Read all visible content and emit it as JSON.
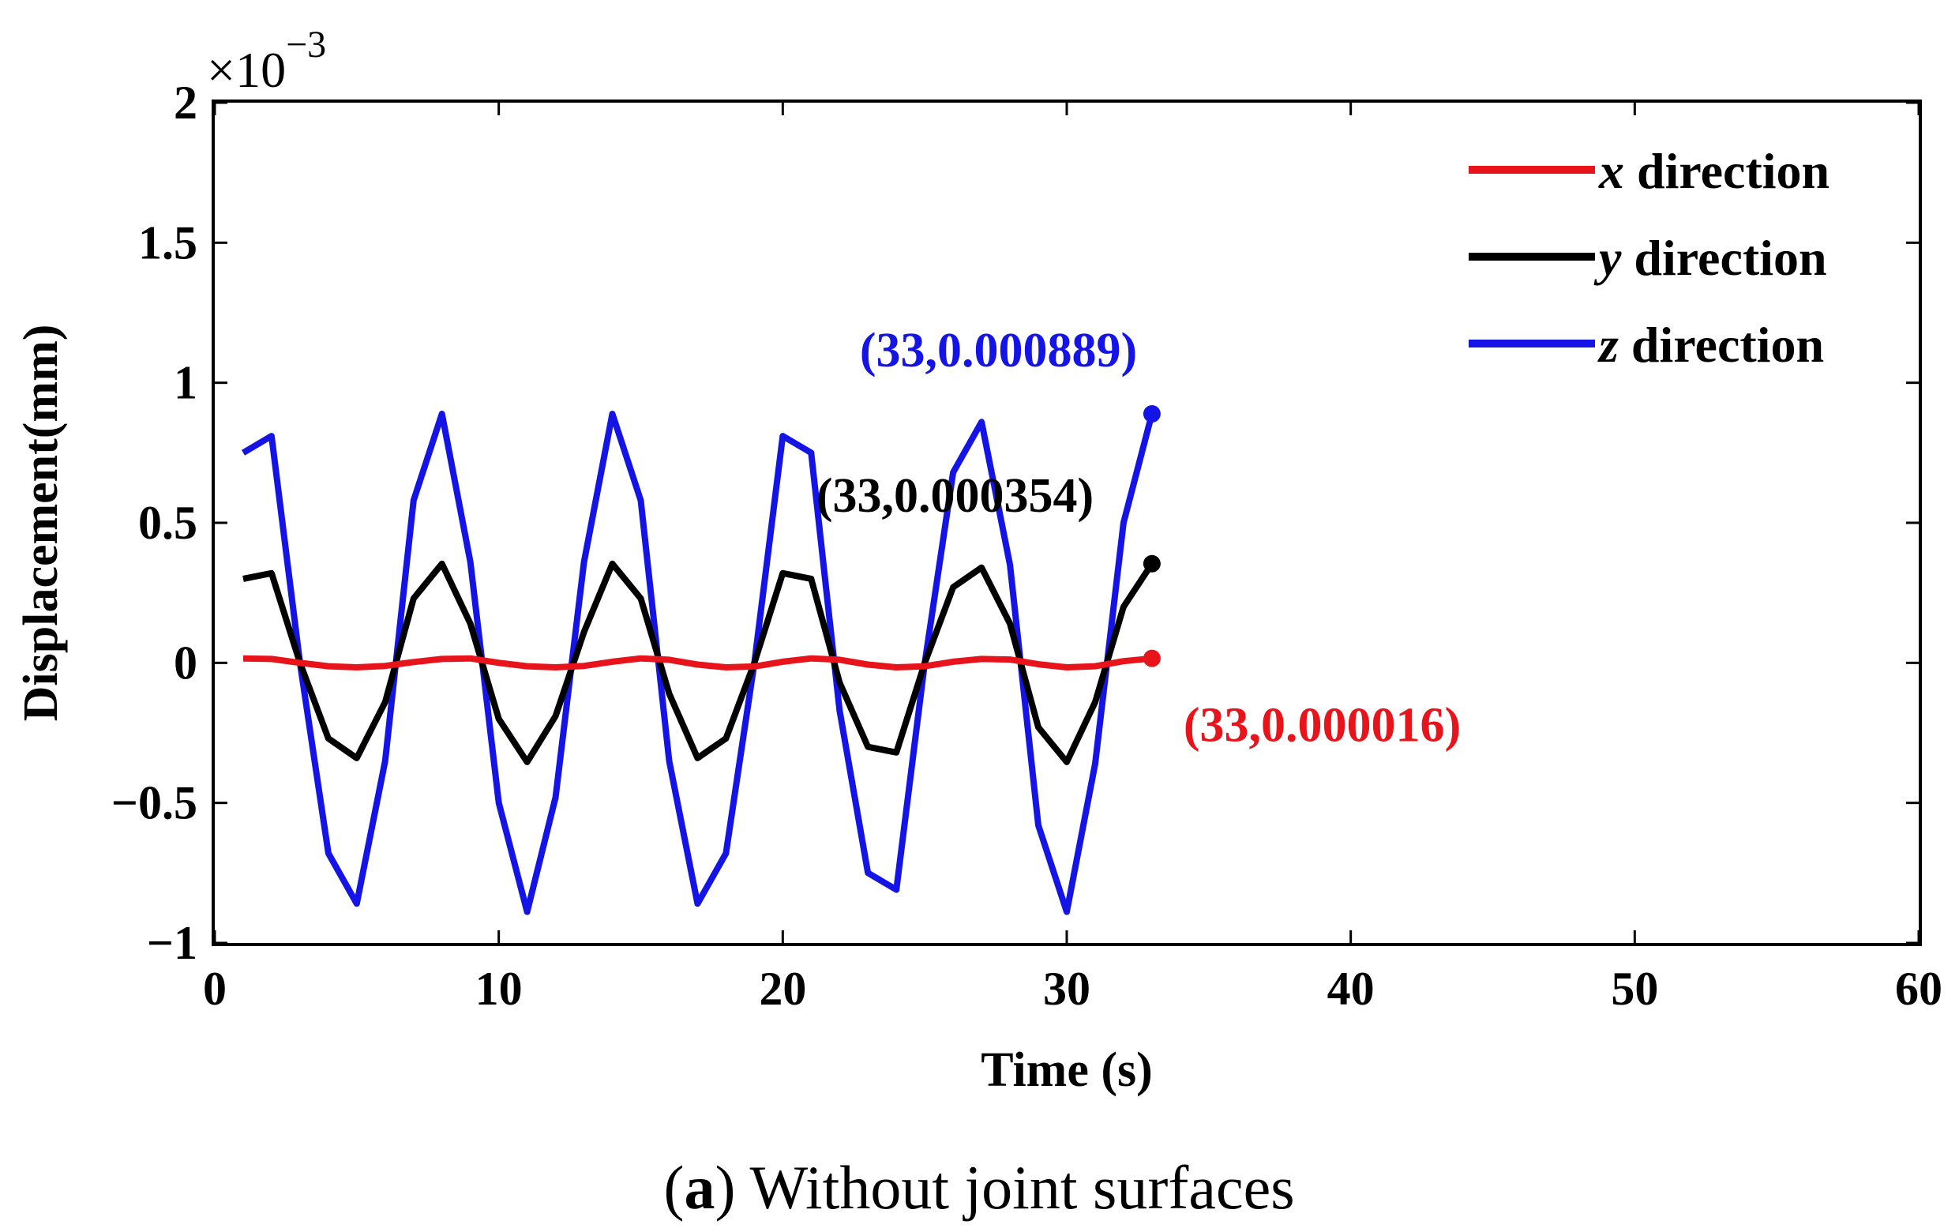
{
  "chart_data": {
    "type": "line",
    "title": "",
    "xlabel": "Time (s)",
    "ylabel": "Displacement(mm)",
    "xlim": [
      0,
      60
    ],
    "ylim": [
      -1,
      2
    ],
    "x_ticks": [
      0,
      10,
      20,
      30,
      40,
      50,
      60
    ],
    "x_tick_labels": [
      "0",
      "10",
      "20",
      "30",
      "40",
      "50",
      "60"
    ],
    "y_ticks": [
      -1,
      -0.5,
      0,
      0.5,
      1,
      1.5,
      2
    ],
    "y_tick_labels": [
      "−1",
      "−0.5",
      "0",
      "0.5",
      "1",
      "1.5",
      "2"
    ],
    "y_multiplier": {
      "base": "×10",
      "exponent": "−3"
    },
    "grid": false,
    "legend_position": "top-right",
    "series": [
      {
        "name_var": "x",
        "name_rest": " direction",
        "color": "#e8141c",
        "x": [
          1,
          2,
          3,
          4,
          5,
          6,
          7,
          8,
          9,
          10,
          11,
          12,
          13,
          14,
          15,
          16,
          17,
          18,
          19,
          20,
          21,
          22,
          23,
          24,
          25,
          26,
          27,
          28,
          29,
          30,
          31,
          32,
          33
        ],
        "values": [
          0.016,
          0.014,
          0.0,
          -0.012,
          -0.016,
          -0.011,
          0.003,
          0.014,
          0.016,
          0.0,
          -0.012,
          -0.016,
          -0.011,
          0.004,
          0.016,
          0.011,
          -0.006,
          -0.016,
          -0.013,
          0.004,
          0.016,
          0.011,
          -0.006,
          -0.016,
          -0.012,
          0.004,
          0.014,
          0.012,
          -0.005,
          -0.016,
          -0.012,
          0.006,
          0.016
        ]
      },
      {
        "name_var": "y",
        "name_rest": " direction",
        "color": "#000000",
        "x": [
          1,
          2,
          3,
          4,
          5,
          6,
          7,
          8,
          9,
          10,
          11,
          12,
          13,
          14,
          15,
          16,
          17,
          18,
          19,
          20,
          21,
          22,
          23,
          24,
          25,
          26,
          27,
          28,
          29,
          30,
          31,
          32,
          33
        ],
        "values": [
          0.3,
          0.32,
          0.0,
          -0.27,
          -0.34,
          -0.14,
          0.23,
          0.354,
          0.14,
          -0.2,
          -0.354,
          -0.19,
          0.11,
          0.354,
          0.23,
          -0.11,
          -0.34,
          -0.27,
          0.0,
          0.32,
          0.3,
          -0.07,
          -0.3,
          -0.32,
          0.0,
          0.27,
          0.34,
          0.14,
          -0.23,
          -0.354,
          -0.14,
          0.2,
          0.354
        ]
      },
      {
        "name_var": "z",
        "name_rest": " direction",
        "color": "#1414e6",
        "x": [
          1,
          2,
          3,
          4,
          5,
          6,
          7,
          8,
          9,
          10,
          11,
          12,
          13,
          14,
          15,
          16,
          17,
          18,
          19,
          20,
          21,
          22,
          23,
          24,
          25,
          26,
          27,
          28,
          29,
          30,
          31,
          32,
          33
        ],
        "values": [
          0.75,
          0.81,
          0.0,
          -0.68,
          -0.86,
          -0.35,
          0.58,
          0.889,
          0.36,
          -0.5,
          -0.889,
          -0.48,
          0.36,
          0.889,
          0.58,
          -0.35,
          -0.86,
          -0.68,
          0.0,
          0.81,
          0.75,
          -0.17,
          -0.75,
          -0.81,
          0.0,
          0.68,
          0.86,
          0.35,
          -0.58,
          -0.889,
          -0.36,
          0.5,
          0.889
        ]
      }
    ],
    "annotations": [
      {
        "text": "(33,0.000889)",
        "x": 33,
        "y": 0.889,
        "color": "#1414e6"
      },
      {
        "text": "(33,0.000354)",
        "x": 33,
        "y": 0.354,
        "color": "#000000"
      },
      {
        "text": "(33,0.000016)",
        "x": 33,
        "y": 0.016,
        "color": "#e8141c"
      }
    ]
  },
  "caption": {
    "open_paren": "(",
    "letter": "a",
    "rest": ") Without joint surfaces"
  }
}
